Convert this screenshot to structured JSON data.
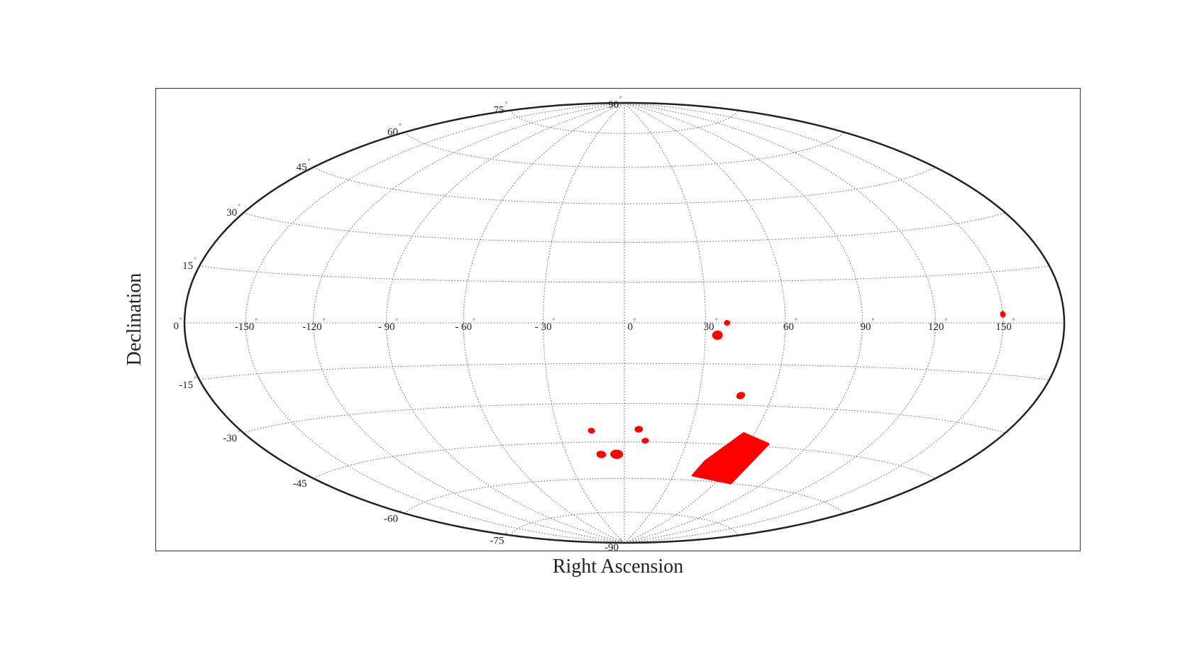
{
  "chart_data": {
    "type": "scatter",
    "projection": "hammer-aitoff",
    "xlabel": "Right Ascension",
    "ylabel": "Declination",
    "grid": true,
    "accent_color": "#ff0000",
    "ra_tick_labels": [
      {
        "value": -150,
        "label": "-150"
      },
      {
        "value": -120,
        "label": "-120"
      },
      {
        "value": -90,
        "label": "- 90"
      },
      {
        "value": -60,
        "label": "- 60"
      },
      {
        "value": -30,
        "label": "- 30"
      },
      {
        "value": 0,
        "label": "0"
      },
      {
        "value": 30,
        "label": "30"
      },
      {
        "value": 60,
        "label": "60"
      },
      {
        "value": 90,
        "label": "90"
      },
      {
        "value": 120,
        "label": "120"
      },
      {
        "value": 150,
        "label": "150"
      }
    ],
    "dec_tick_labels": [
      {
        "value": 90,
        "label": "90"
      },
      {
        "value": 75,
        "label": "75"
      },
      {
        "value": 60,
        "label": "60"
      },
      {
        "value": 45,
        "label": "45"
      },
      {
        "value": 30,
        "label": "30"
      },
      {
        "value": 15,
        "label": "15"
      },
      {
        "value": 0,
        "label": "0"
      },
      {
        "value": -15,
        "label": "-15"
      },
      {
        "value": -30,
        "label": "-30"
      },
      {
        "value": -45,
        "label": "-45"
      },
      {
        "value": -60,
        "label": "-60"
      },
      {
        "value": -75,
        "label": "-75"
      },
      {
        "value": -90,
        "label": "-90"
      }
    ],
    "degree_symbol": "°",
    "regions": [
      {
        "ra": 150.0,
        "dec": 2.5,
        "size": 0.9
      },
      {
        "ra": 38.0,
        "dec": 0.0,
        "size": 0.9
      },
      {
        "ra": 34.5,
        "dec": -4.5,
        "size": 1.7
      },
      {
        "ra": 47.0,
        "dec": -26.5,
        "size": 1.3
      },
      {
        "ra": -15.0,
        "dec": -40.5,
        "size": 1.0
      },
      {
        "ra": 6.5,
        "dec": -40.0,
        "size": 1.2
      },
      {
        "ra": 10.0,
        "dec": -44.5,
        "size": 1.0
      },
      {
        "ra": -12.0,
        "dec": -50.0,
        "size": 1.4
      },
      {
        "ra": -4.0,
        "dec": -50.0,
        "size": 1.9
      },
      {
        "ra": 66.0,
        "dec": -55.5,
        "size": 1.1
      }
    ],
    "filled_regions": [
      {
        "vertices": [
          [
            55,
            -40.5
          ],
          [
            70,
            -44
          ],
          [
            70,
            -60
          ],
          [
            42,
            -58
          ],
          [
            44,
            -52
          ]
        ]
      }
    ]
  }
}
